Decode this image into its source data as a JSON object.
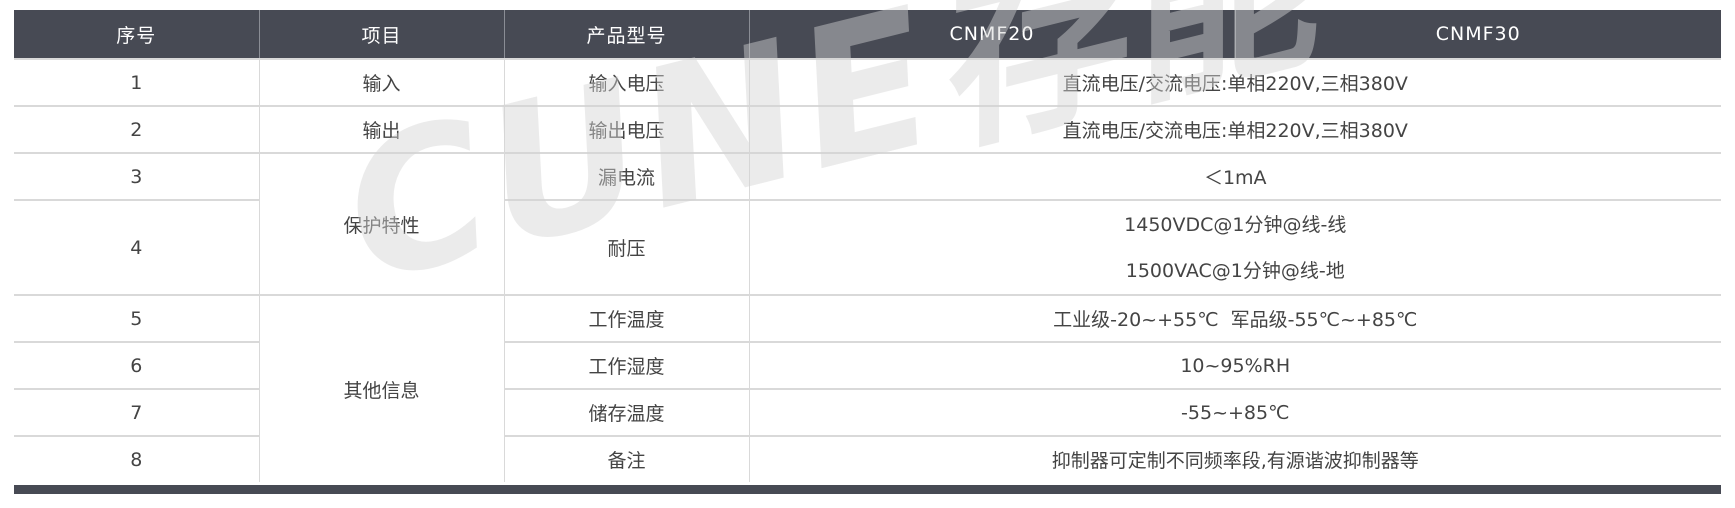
{
  "header": [
    "序号",
    "项目",
    "产品型号",
    "CNMF20",
    "CNMF30"
  ],
  "rows": [
    {
      "no": "1",
      "item": "输入",
      "param": "输入电压",
      "value": "直流电压/交流电压:单相220V,三相380V"
    },
    {
      "no": "2",
      "item": "输出",
      "param": "输出电压",
      "value": "直流电压/交流电压:单相220V,三相380V"
    },
    {
      "no": "3",
      "item": "保护特性",
      "param": "漏电流",
      "value": "＜1mA"
    },
    {
      "no": "4",
      "param": "耐压",
      "value_lines": [
        "1450VDC@1分钟@线-线",
        "1500VAC@1分钟@线-地"
      ]
    },
    {
      "no": "5",
      "item": "其他信息",
      "param": "工作温度",
      "value": "工业级-20~+55℃  军品级-55℃~+85℃"
    },
    {
      "no": "6",
      "param": "工作湿度",
      "value": "10~95%RH"
    },
    {
      "no": "7",
      "param": "储存温度",
      "value": "-55~+85℃"
    },
    {
      "no": "8",
      "param": "备注",
      "value": "抑制器可定制不同频率段,有源谐波抑制器等"
    }
  ],
  "watermark": "CUNE存能",
  "colors": {
    "header_bg": "#474a54",
    "border": "#d9d9d9",
    "text": "#444444"
  }
}
